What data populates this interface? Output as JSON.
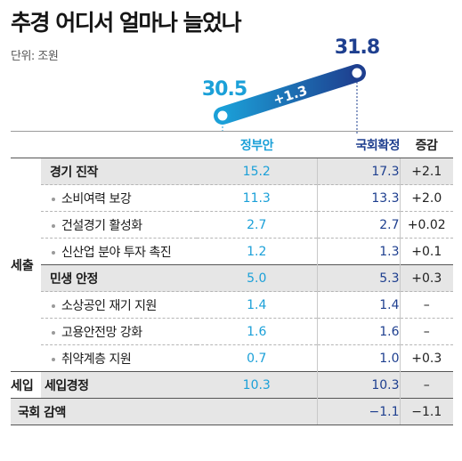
{
  "title": "추경 어디서 얼마나 늘었나",
  "unit": "단위: 조원",
  "hero": {
    "gov_value": "30.5",
    "final_value": "31.8",
    "diff": "+1.3",
    "colors": {
      "gov": "#1ba0d8",
      "final": "#1e3f8f"
    }
  },
  "columns": {
    "gov": "정부안",
    "final": "국회확정",
    "diff": "증감"
  },
  "sections": {
    "expenditure": "세출",
    "revenue": "세입"
  },
  "rows": [
    {
      "kind": "main",
      "label": "경기 진작",
      "gov": "15.2",
      "final": "17.3",
      "diff": "+2.1"
    },
    {
      "kind": "sub",
      "label": "소비여력 보강",
      "gov": "11.3",
      "final": "13.3",
      "diff": "+2.0"
    },
    {
      "kind": "sub",
      "label": "건설경기 활성화",
      "gov": "2.7",
      "final": "2.7",
      "diff": "+0.02"
    },
    {
      "kind": "sub",
      "label": "신산업 분야 투자 촉진",
      "gov": "1.2",
      "final": "1.3",
      "diff": "+0.1"
    },
    {
      "kind": "main",
      "label": "민생 안정",
      "gov": "5.0",
      "final": "5.3",
      "diff": "+0.3"
    },
    {
      "kind": "sub",
      "label": "소상공인 재기 지원",
      "gov": "1.4",
      "final": "1.4",
      "diff": "–"
    },
    {
      "kind": "sub",
      "label": "고용안전망 강화",
      "gov": "1.6",
      "final": "1.6",
      "diff": "–"
    },
    {
      "kind": "sub",
      "label": "취약계층 지원",
      "gov": "0.7",
      "final": "1.0",
      "diff": "+0.3"
    }
  ],
  "revenue_row": {
    "label": "세입경정",
    "gov": "10.3",
    "final": "10.3",
    "diff": "–"
  },
  "cut_row": {
    "label": "국회 감액",
    "gov": "",
    "final": "−1.1",
    "diff": "−1.1"
  },
  "chart_data": {
    "type": "table",
    "title": "추경 어디서 얼마나 늘었나",
    "unit": "조원",
    "totals": {
      "정부안": 30.5,
      "국회확정": 31.8,
      "증감": 1.3
    },
    "columns": [
      "정부안",
      "국회확정",
      "증감"
    ],
    "rows": [
      {
        "section": "세출",
        "item": "경기 진작",
        "정부안": 15.2,
        "국회확정": 17.3,
        "증감": 2.1
      },
      {
        "section": "세출",
        "item": "소비여력 보강",
        "정부안": 11.3,
        "국회확정": 13.3,
        "증감": 2.0
      },
      {
        "section": "세출",
        "item": "건설경기 활성화",
        "정부안": 2.7,
        "국회확정": 2.7,
        "증감": 0.02
      },
      {
        "section": "세출",
        "item": "신산업 분야 투자 촉진",
        "정부안": 1.2,
        "국회확정": 1.3,
        "증감": 0.1
      },
      {
        "section": "세출",
        "item": "민생 안정",
        "정부안": 5.0,
        "국회확정": 5.3,
        "증감": 0.3
      },
      {
        "section": "세출",
        "item": "소상공인 재기 지원",
        "정부안": 1.4,
        "국회확정": 1.4,
        "증감": null
      },
      {
        "section": "세출",
        "item": "고용안전망 강화",
        "정부안": 1.6,
        "국회확정": 1.6,
        "증감": null
      },
      {
        "section": "세출",
        "item": "취약계층 지원",
        "정부안": 0.7,
        "국회확정": 1.0,
        "증감": 0.3
      },
      {
        "section": "세입",
        "item": "세입경정",
        "정부안": 10.3,
        "국회확정": 10.3,
        "증감": null
      },
      {
        "section": "",
        "item": "국회 감액",
        "정부안": null,
        "국회확정": -1.1,
        "증감": -1.1
      }
    ]
  }
}
